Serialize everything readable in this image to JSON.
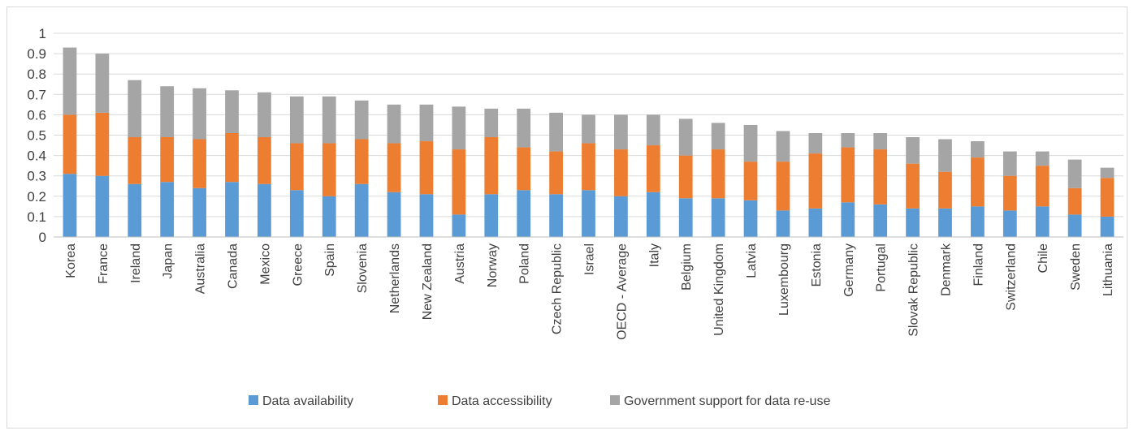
{
  "chart_data": {
    "type": "bar",
    "stacked": true,
    "categories": [
      "Korea",
      "France",
      "Ireland",
      "Japan",
      "Australia",
      "Canada",
      "Mexico",
      "Greece",
      "Spain",
      "Slovenia",
      "Netherlands",
      "New Zealand",
      "Austria",
      "Norway",
      "Poland",
      "Czech Republic",
      "Israel",
      "OECD - Average",
      "Italy",
      "Belgium",
      "United Kingdom",
      "Latvia",
      "Luxembourg",
      "Estonia",
      "Germany",
      "Portugal",
      "Slovak Republic",
      "Denmark",
      "Finland",
      "Switzerland",
      "Chile",
      "Sweden",
      "Lithuania"
    ],
    "series": [
      {
        "name": "Data availability",
        "color": "#5b9bd5",
        "values": [
          0.31,
          0.3,
          0.26,
          0.27,
          0.24,
          0.27,
          0.26,
          0.23,
          0.2,
          0.26,
          0.22,
          0.21,
          0.11,
          0.21,
          0.23,
          0.21,
          0.23,
          0.2,
          0.22,
          0.19,
          0.19,
          0.18,
          0.13,
          0.14,
          0.17,
          0.16,
          0.14,
          0.14,
          0.15,
          0.13,
          0.15,
          0.11,
          0.1
        ]
      },
      {
        "name": "Data accessibility",
        "color": "#ed7d31",
        "values": [
          0.29,
          0.31,
          0.23,
          0.22,
          0.24,
          0.24,
          0.23,
          0.23,
          0.26,
          0.22,
          0.24,
          0.26,
          0.32,
          0.28,
          0.21,
          0.21,
          0.23,
          0.23,
          0.23,
          0.21,
          0.24,
          0.19,
          0.24,
          0.27,
          0.27,
          0.27,
          0.22,
          0.18,
          0.24,
          0.17,
          0.2,
          0.13,
          0.19
        ]
      },
      {
        "name": "Government support for data re-use",
        "color": "#a5a5a5",
        "values": [
          0.33,
          0.29,
          0.28,
          0.25,
          0.25,
          0.21,
          0.22,
          0.23,
          0.23,
          0.19,
          0.19,
          0.18,
          0.21,
          0.14,
          0.19,
          0.19,
          0.14,
          0.17,
          0.15,
          0.18,
          0.13,
          0.18,
          0.15,
          0.1,
          0.07,
          0.08,
          0.13,
          0.16,
          0.08,
          0.12,
          0.07,
          0.14,
          0.05
        ]
      }
    ],
    "y_ticks": [
      "0",
      "0.1",
      "0.2",
      "0.3",
      "0.4",
      "0.5",
      "0.6",
      "0.7",
      "0.8",
      "0.9",
      "1"
    ],
    "ylim": [
      0,
      1
    ],
    "grid": true,
    "legend_position": "bottom"
  }
}
